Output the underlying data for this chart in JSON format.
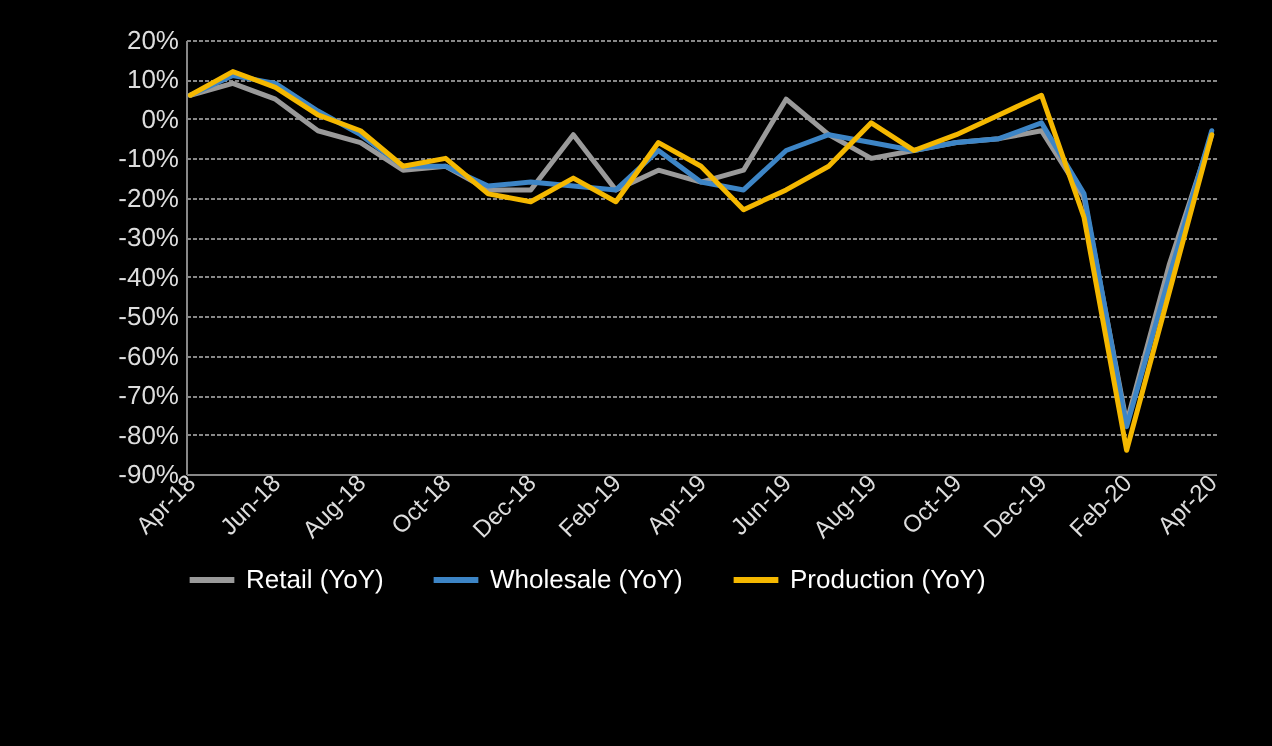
{
  "chart_data": {
    "type": "line",
    "categories": [
      "Apr-18",
      null,
      "Jun-18",
      null,
      "Aug-18",
      null,
      "Oct-18",
      null,
      "Dec-18",
      null,
      "Feb-19",
      null,
      "Apr-19",
      null,
      "Jun-19",
      null,
      "Aug-19",
      null,
      "Oct-19",
      null,
      "Dec-19",
      null,
      "Feb-20",
      null,
      "Apr-20"
    ],
    "series": [
      {
        "name": "Retail (YoY)",
        "color": "#9a9a9a",
        "values": [
          6,
          9,
          5,
          -3,
          -6,
          -13,
          -12,
          -18,
          -18,
          -4,
          -18,
          -13,
          -16,
          -13,
          5,
          -4,
          -10,
          -8,
          -6,
          -5,
          -3,
          -20,
          -77,
          -37,
          -4
        ]
      },
      {
        "name": "Wholesale (YoY)",
        "color": "#3d85c6",
        "values": [
          6,
          11,
          9,
          2,
          -4,
          -12,
          -12,
          -17,
          -16,
          -17,
          -18,
          -8,
          -16,
          -18,
          -8,
          -4,
          -6,
          -8,
          -6,
          -5,
          -1,
          -19,
          -78,
          -40,
          -3
        ]
      },
      {
        "name": "Production (YoY)",
        "color": "#f5b800",
        "values": [
          6,
          12,
          8,
          1,
          -3,
          -12,
          -10,
          -19,
          -21,
          -15,
          -21,
          -6,
          -12,
          -23,
          -18,
          -12,
          -1,
          -8,
          -4,
          1,
          6,
          -25,
          -84,
          -44,
          -4
        ]
      }
    ],
    "ylim": [
      -90,
      20
    ],
    "yticks": [
      {
        "value": 20,
        "label": "20%"
      },
      {
        "value": 10,
        "label": "10%"
      },
      {
        "value": 0,
        "label": "0%"
      },
      {
        "value": -10,
        "label": "-10%"
      },
      {
        "value": -20,
        "label": "-20%"
      },
      {
        "value": -30,
        "label": "-30%"
      },
      {
        "value": -40,
        "label": "-40%"
      },
      {
        "value": -50,
        "label": "-50%"
      },
      {
        "value": -60,
        "label": "-60%"
      },
      {
        "value": -70,
        "label": "-70%"
      },
      {
        "value": -80,
        "label": "-80%"
      },
      {
        "value": -90,
        "label": "-90%"
      }
    ],
    "grid": "y",
    "legend": "bottom",
    "line_style": "solid",
    "marker": "none"
  }
}
